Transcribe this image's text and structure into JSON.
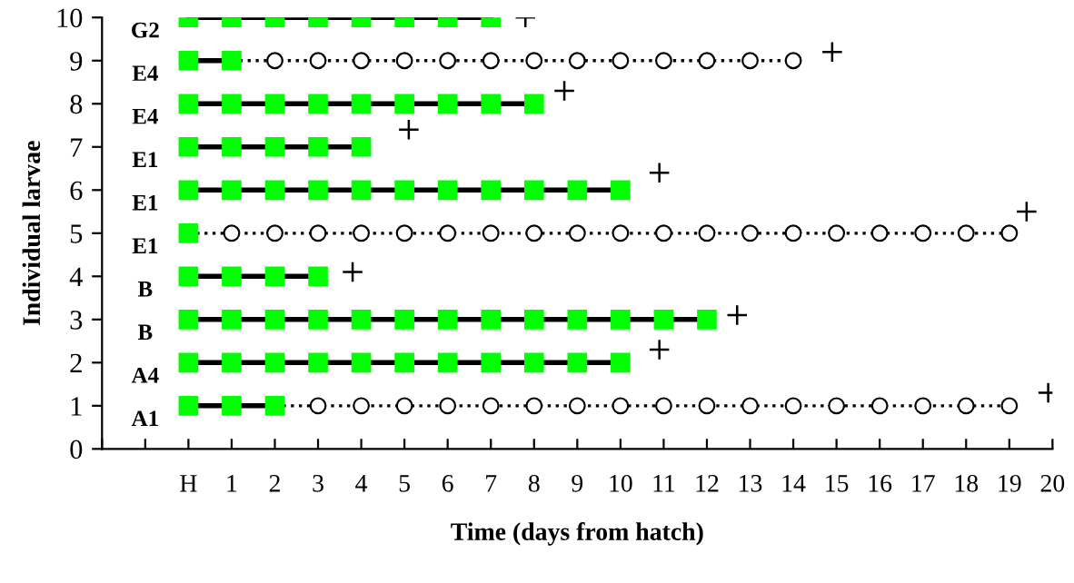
{
  "chart_data": {
    "type": "line",
    "xlabel": "Time (days from hatch)",
    "ylabel": "Individual larvae",
    "xlim": [
      -2,
      20
    ],
    "ylim": [
      0,
      10
    ],
    "xticks": [
      {
        "value": -2,
        "label": null
      },
      {
        "value": -1,
        "label": null
      },
      {
        "value": 0,
        "label": "H"
      },
      1,
      2,
      3,
      4,
      5,
      6,
      7,
      8,
      9,
      10,
      11,
      12,
      13,
      14,
      15,
      16,
      17,
      18,
      19,
      20
    ],
    "yticks": [
      0,
      1,
      2,
      3,
      4,
      5,
      6,
      7,
      8,
      9,
      10
    ],
    "grid": false,
    "legend": false,
    "annotations": [
      "G2",
      "E4",
      "E4",
      "E1",
      "E1",
      "E1",
      "B",
      "B",
      "A4",
      "A1"
    ],
    "series": [
      {
        "color": "#00ff00",
        "marker": "square",
        "line_style": "solid",
        "x": [
          0,
          1,
          2,
          3,
          4,
          5,
          6,
          7
        ],
        "values": [
          10,
          10,
          10,
          10,
          10,
          10,
          10,
          10
        ]
      },
      {
        "color": "#00ff00",
        "marker": "square",
        "line_style": "solid",
        "x": [
          0,
          1
        ],
        "values": [
          9,
          9
        ]
      },
      {
        "color": "#000000",
        "marker": "circle",
        "line_style": "dotted",
        "x": [
          1,
          2,
          3,
          4,
          5,
          6,
          7,
          8,
          9,
          10,
          11,
          12,
          13,
          14
        ],
        "values": [
          9,
          9,
          9,
          9,
          9,
          9,
          9,
          9,
          9,
          9,
          9,
          9,
          9,
          9
        ]
      },
      {
        "color": "#00ff00",
        "marker": "square",
        "line_style": "solid",
        "x": [
          0,
          1,
          2,
          3,
          4,
          5,
          6,
          7,
          8
        ],
        "values": [
          8,
          8,
          8,
          8,
          8,
          8,
          8,
          8,
          8
        ]
      },
      {
        "color": "#00ff00",
        "marker": "square",
        "line_style": "solid",
        "x": [
          0,
          1,
          2,
          3,
          4
        ],
        "values": [
          7,
          7,
          7,
          7,
          7
        ]
      },
      {
        "color": "#00ff00",
        "marker": "square",
        "line_style": "solid",
        "x": [
          0,
          1,
          2,
          3,
          4,
          5,
          6,
          7,
          8,
          9,
          10
        ],
        "values": [
          6,
          6,
          6,
          6,
          6,
          6,
          6,
          6,
          6,
          6,
          6
        ]
      },
      {
        "color": "#00ff00",
        "marker": "square",
        "line_style": "solid",
        "x": [
          0
        ],
        "values": [
          5
        ]
      },
      {
        "color": "#000000",
        "marker": "circle",
        "line_style": "dotted",
        "x": [
          0,
          1,
          2,
          3,
          4,
          5,
          6,
          7,
          8,
          9,
          10,
          11,
          12,
          13,
          14,
          15,
          16,
          17,
          18,
          19
        ],
        "values": [
          5,
          5,
          5,
          5,
          5,
          5,
          5,
          5,
          5,
          5,
          5,
          5,
          5,
          5,
          5,
          5,
          5,
          5,
          5,
          5
        ]
      },
      {
        "color": "#00ff00",
        "marker": "square",
        "line_style": "solid",
        "x": [
          0,
          1,
          2,
          3
        ],
        "values": [
          4,
          4,
          4,
          4
        ]
      },
      {
        "color": "#00ff00",
        "marker": "square",
        "line_style": "solid",
        "x": [
          0,
          1,
          2,
          3,
          4,
          5,
          6,
          7,
          8,
          9,
          10,
          11,
          12
        ],
        "values": [
          3,
          3,
          3,
          3,
          3,
          3,
          3,
          3,
          3,
          3,
          3,
          3,
          3
        ]
      },
      {
        "color": "#00ff00",
        "marker": "square",
        "line_style": "solid",
        "x": [
          0,
          1,
          2,
          3,
          4,
          5,
          6,
          7,
          8,
          9,
          10
        ],
        "values": [
          2,
          2,
          2,
          2,
          2,
          2,
          2,
          2,
          2,
          2,
          2
        ]
      },
      {
        "color": "#00ff00",
        "marker": "square",
        "line_style": "solid",
        "x": [
          0,
          1,
          2
        ],
        "values": [
          1,
          1,
          1
        ]
      },
      {
        "color": "#000000",
        "marker": "circle",
        "line_style": "dotted",
        "x": [
          2,
          3,
          4,
          5,
          6,
          7,
          8,
          9,
          10,
          11,
          12,
          13,
          14,
          15,
          16,
          17,
          18,
          19
        ],
        "values": [
          1,
          1,
          1,
          1,
          1,
          1,
          1,
          1,
          1,
          1,
          1,
          1,
          1,
          1,
          1,
          1,
          1,
          1
        ]
      },
      {
        "type": "scatter",
        "color": "#000000",
        "marker": "cross",
        "x": [
          7.8,
          14.9,
          8.7,
          5.1,
          10.9,
          19.4,
          3.8,
          12.7,
          10.9,
          19.9
        ],
        "values": [
          10,
          9.2,
          8.3,
          7.4,
          6.4,
          5.5,
          4.1,
          3.1,
          2.3,
          1.3
        ]
      }
    ]
  }
}
